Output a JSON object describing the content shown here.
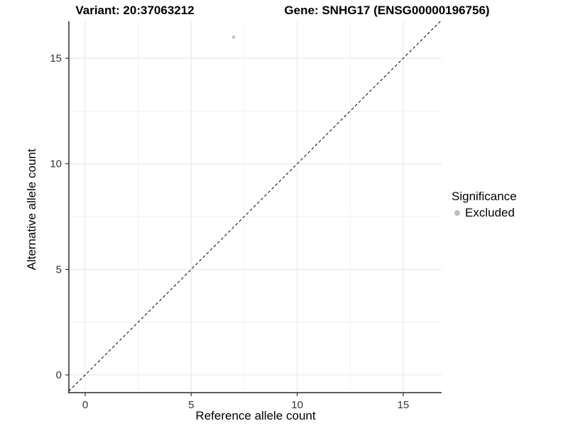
{
  "chart_data": {
    "type": "scatter",
    "title_left": "Variant: 20:37063212",
    "title_right": "Gene: SNHG17 (ENSG00000196756)",
    "xlabel": "Reference allele count",
    "ylabel": "Alternative allele count",
    "xlim": [
      -0.77,
      16.81
    ],
    "ylim": [
      -0.84,
      16.75
    ],
    "x_ticks": [
      0,
      5,
      10,
      15
    ],
    "y_ticks": [
      0,
      5,
      10,
      15
    ],
    "x_tick_labels": [
      "0",
      "5",
      "10",
      "15"
    ],
    "y_tick_labels": [
      "0",
      "5",
      "10",
      "15"
    ],
    "x_minor_ticks": [
      2.5,
      7.5,
      12.5
    ],
    "y_minor_ticks": [
      2.5,
      7.5,
      12.5
    ],
    "grid": "major+minor",
    "identity_line": {
      "style": "dashed",
      "equation": "y = x",
      "color": "#000000"
    },
    "points": [
      {
        "x": 7,
        "y": 16,
        "series": "Excluded"
      }
    ],
    "series_colors": {
      "Excluded": "#bebebe"
    },
    "point_radius": 2.2,
    "legend": {
      "position": "right",
      "title": "Significance",
      "items": [
        {
          "label": "Excluded",
          "color": "#bebebe"
        }
      ]
    },
    "colors": {
      "grid_major": "#e4e4e4",
      "grid_minor": "#f1f1f1",
      "axis_line": "#2a2a2a",
      "tick_mark": "#333333",
      "tick_label": "#333333"
    }
  }
}
